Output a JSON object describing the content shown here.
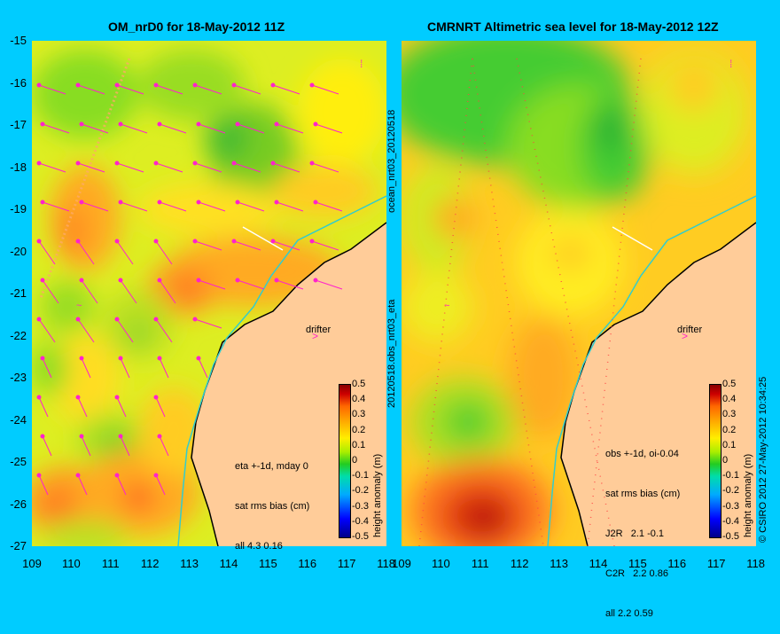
{
  "left_panel": {
    "title": "OM_nrD0 for 18-May-2012 11Z",
    "info_lines": [
      "eta +-1d, mday 0",
      "sat rms bias (cm)",
      "all 4.3 0.16"
    ],
    "drifter_label": "drifter"
  },
  "right_panel": {
    "title": "CMRNRT Altimetric sea level  for 18-May-2012 12Z",
    "info_lines": [
      "obs +-1d, oi-0.04",
      "sat rms bias (cm)",
      "J2R   2.1 -0.1",
      "C2R   2.2 0.86",
      "all 2.2 0.59"
    ],
    "drifter_label": "drifter"
  },
  "middle_label_top": "ocean_nrt03_20120518",
  "middle_label_bottom": "20120518.obs_nrt03_eta",
  "right_edge_label": "© CSIRO 2012  27-May-2012 10:34:25",
  "y_ticks": [
    "-15",
    "-16",
    "-17",
    "-18",
    "-19",
    "-20",
    "-21",
    "-22",
    "-23",
    "-24",
    "-25",
    "-26",
    "-27"
  ],
  "x_ticks": [
    "109",
    "110",
    "111",
    "112",
    "113",
    "114",
    "115",
    "116",
    "117",
    "118"
  ],
  "colorbar": {
    "label": "height anomaly (m)",
    "ticks": [
      "0.5",
      "0.4",
      "0.3",
      "0.2",
      "0.1",
      "0",
      "-0.1",
      "-0.2",
      "-0.3",
      "-0.4",
      "-0.5"
    ]
  },
  "colors": {
    "background": "#00ccff",
    "land": "#ffcc99",
    "vector": "#ff22cc",
    "coastline_current": "#33cccc"
  }
}
